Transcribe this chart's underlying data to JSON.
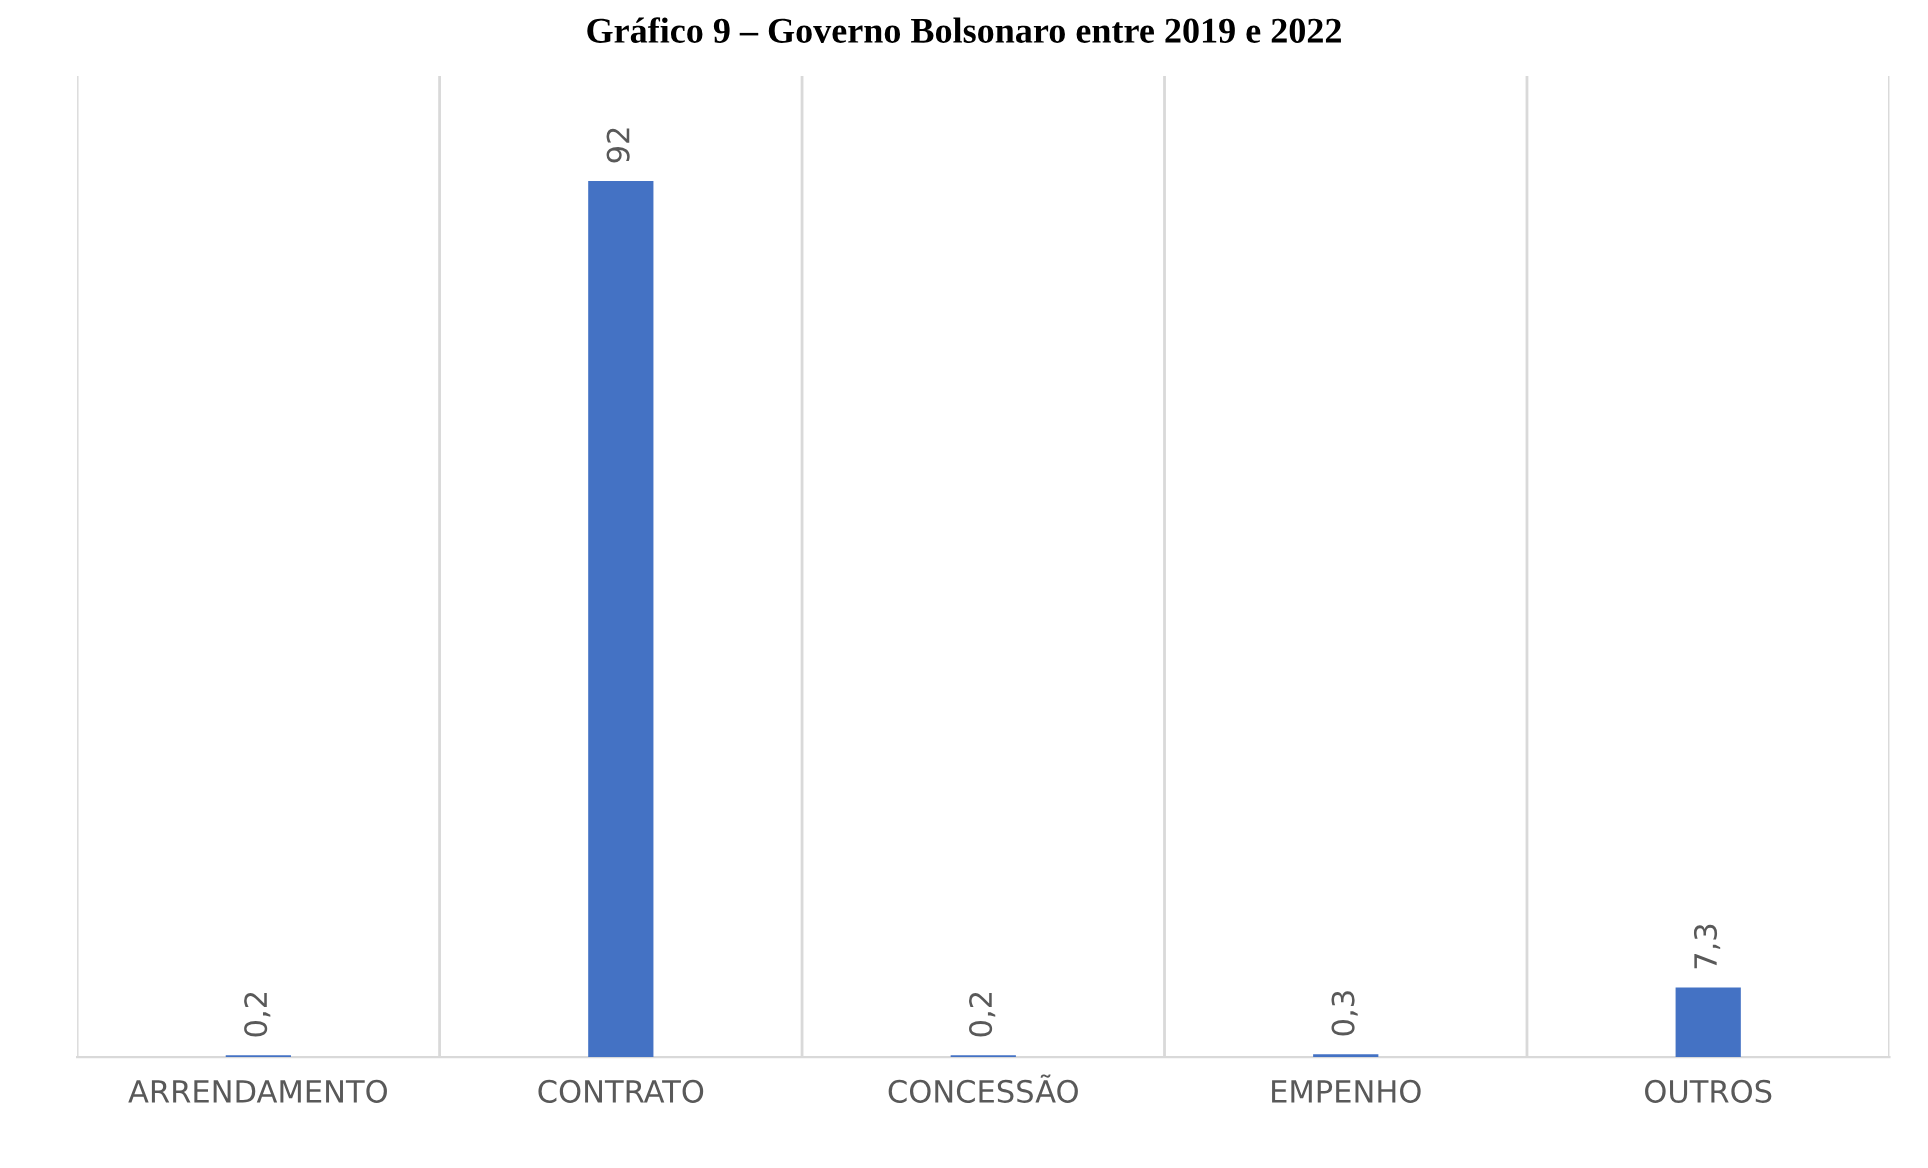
{
  "chart_data": {
    "type": "bar",
    "title": "Gráfico 9 – Governo Bolsonaro entre 2019 e 2022",
    "categories": [
      "ARRENDAMENTO",
      "CONTRATO",
      "CONCESSÃO",
      "EMPENHO",
      "OUTROS"
    ],
    "values": [
      0.2,
      92,
      0.2,
      0.3,
      7.3
    ],
    "value_labels": [
      "0,2",
      "92",
      "0,2",
      "0,3",
      "7,3"
    ],
    "color": "#4472c4",
    "grid": "x"
  }
}
